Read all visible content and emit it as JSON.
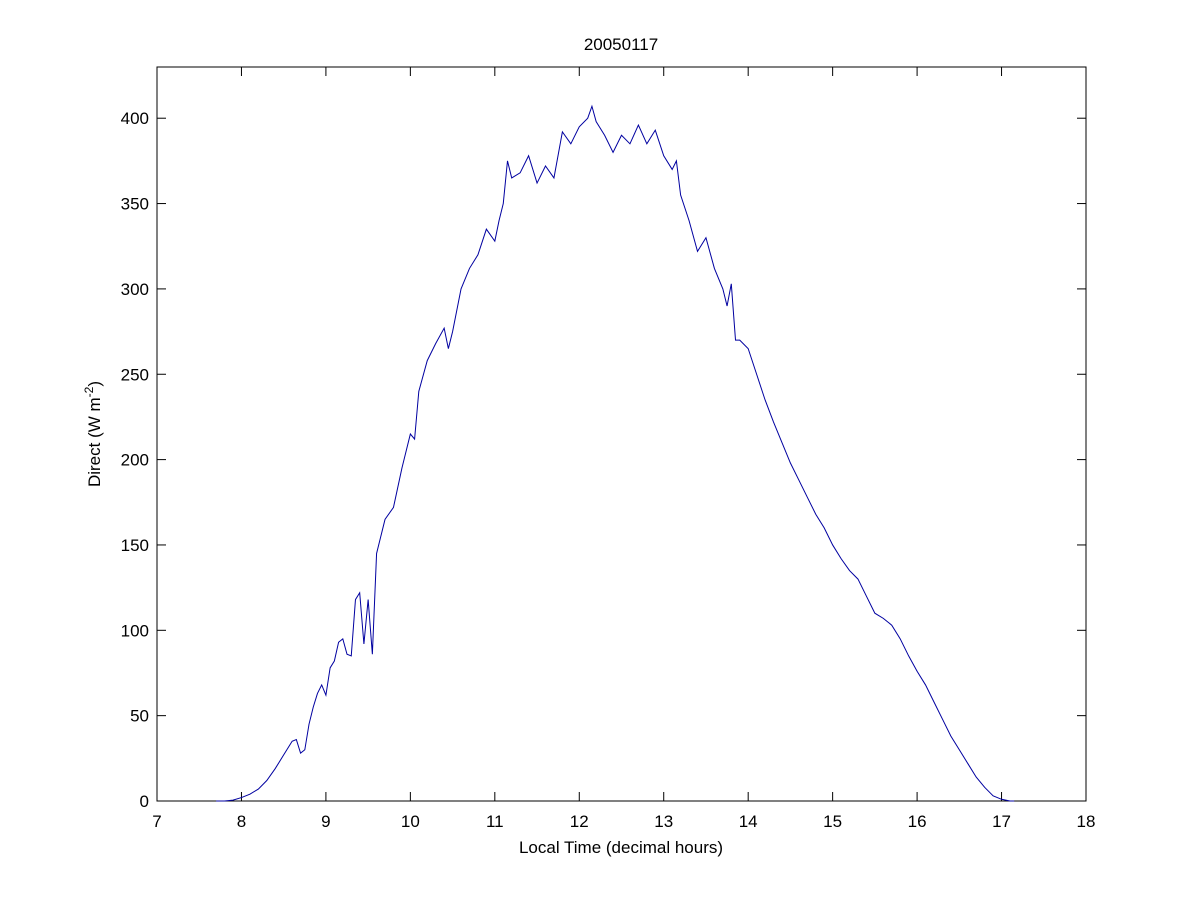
{
  "chart_data": {
    "type": "line",
    "title": "20050117",
    "xlabel": "Local Time (decimal hours)",
    "ylabel": {
      "text": "Direct (W m",
      "superscript": "-2",
      "suffix": ")"
    },
    "xlim": [
      7,
      18
    ],
    "xticks": [
      7,
      8,
      9,
      10,
      11,
      12,
      13,
      14,
      15,
      16,
      17,
      18
    ],
    "ylim": [
      0,
      430
    ],
    "yticks": [
      0,
      50,
      100,
      150,
      200,
      250,
      300,
      350,
      400
    ],
    "grid": false,
    "series": [
      {
        "color": "#0000a0",
        "x": [
          7.7,
          7.8,
          7.9,
          8.0,
          8.1,
          8.2,
          8.3,
          8.4,
          8.5,
          8.6,
          8.65,
          8.7,
          8.75,
          8.8,
          8.85,
          8.9,
          8.95,
          9.0,
          9.05,
          9.1,
          9.15,
          9.2,
          9.25,
          9.3,
          9.35,
          9.4,
          9.45,
          9.5,
          9.55,
          9.6,
          9.7,
          9.8,
          9.9,
          10.0,
          10.05,
          10.1,
          10.2,
          10.3,
          10.4,
          10.45,
          10.5,
          10.6,
          10.7,
          10.8,
          10.9,
          11.0,
          11.05,
          11.1,
          11.15,
          11.2,
          11.3,
          11.4,
          11.5,
          11.6,
          11.7,
          11.8,
          11.9,
          12.0,
          12.1,
          12.15,
          12.2,
          12.3,
          12.4,
          12.5,
          12.6,
          12.7,
          12.8,
          12.9,
          13.0,
          13.1,
          13.15,
          13.2,
          13.3,
          13.4,
          13.5,
          13.6,
          13.7,
          13.75,
          13.8,
          13.85,
          13.9,
          14.0,
          14.1,
          14.2,
          14.3,
          14.4,
          14.5,
          14.6,
          14.7,
          14.8,
          14.9,
          15.0,
          15.1,
          15.2,
          15.3,
          15.4,
          15.5,
          15.6,
          15.7,
          15.8,
          15.9,
          16.0,
          16.1,
          16.2,
          16.3,
          16.4,
          16.5,
          16.6,
          16.7,
          16.8,
          16.9,
          17.0,
          17.1,
          17.15
        ],
        "values": [
          0,
          0,
          0.5,
          2,
          4,
          7,
          12,
          19,
          27,
          35,
          36,
          28,
          30,
          45,
          55,
          63,
          68,
          62,
          78,
          82,
          93,
          95,
          86,
          85,
          118,
          122,
          92,
          118,
          86,
          145,
          165,
          172,
          195,
          215,
          212,
          240,
          258,
          268,
          277,
          265,
          275,
          300,
          312,
          320,
          335,
          328,
          340,
          350,
          375,
          365,
          368,
          378,
          362,
          372,
          365,
          392,
          385,
          395,
          400,
          407,
          398,
          390,
          380,
          390,
          385,
          396,
          385,
          393,
          378,
          370,
          375,
          355,
          340,
          322,
          330,
          312,
          300,
          290,
          303,
          270,
          270,
          265,
          250,
          235,
          222,
          210,
          198,
          188,
          178,
          168,
          160,
          150,
          142,
          135,
          130,
          120,
          110,
          107,
          103,
          95,
          85,
          76,
          68,
          58,
          48,
          38,
          30,
          22,
          14,
          8,
          3,
          1,
          0,
          0
        ]
      }
    ]
  }
}
